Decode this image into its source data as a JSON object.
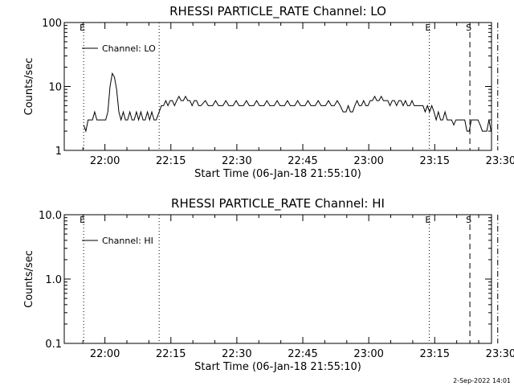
{
  "footer": {
    "stamp": "2-Sep-2022 14:01"
  },
  "chart_data": [
    {
      "type": "line",
      "title": "RHESSI  PARTICLE_RATE  Channel:  LO",
      "xlabel": "Start Time (06-Jan-18 21:55:10)",
      "ylabel": "Counts/sec",
      "xlim": [
        -265,
        5565
      ],
      "ylim": [
        1,
        100
      ],
      "log_y": true,
      "x_ticks": [
        {
          "t": 290,
          "label": "22:00"
        },
        {
          "t": 1190,
          "label": "22:15"
        },
        {
          "t": 2090,
          "label": "22:30"
        },
        {
          "t": 2990,
          "label": "22:45"
        },
        {
          "t": 3890,
          "label": "23:00"
        },
        {
          "t": 4790,
          "label": "23:15"
        },
        {
          "t": 5690,
          "label": "23:30"
        }
      ],
      "y_ticks": [
        {
          "v": 1,
          "label": "1"
        },
        {
          "v": 10,
          "label": "10"
        },
        {
          "v": 100,
          "label": "100"
        }
      ],
      "markers": [
        {
          "t": 0,
          "style": "dotted",
          "label": "E"
        },
        {
          "t": 1030,
          "style": "dotted",
          "label": ""
        },
        {
          "t": 4715,
          "style": "dotted",
          "label": "E"
        },
        {
          "t": 5270,
          "style": "dashed",
          "label": "S"
        },
        {
          "t": 5650,
          "style": "dashdot",
          "label": ""
        }
      ],
      "series": [
        {
          "name": "Channel: LO",
          "points": [
            [
              0,
              2.5
            ],
            [
              30,
              2
            ],
            [
              60,
              3
            ],
            [
              120,
              3
            ],
            [
              150,
              4
            ],
            [
              180,
              3
            ],
            [
              240,
              3
            ],
            [
              300,
              3
            ],
            [
              330,
              4
            ],
            [
              360,
              10
            ],
            [
              390,
              16
            ],
            [
              420,
              14
            ],
            [
              450,
              9
            ],
            [
              480,
              4
            ],
            [
              510,
              3
            ],
            [
              540,
              4
            ],
            [
              570,
              3
            ],
            [
              600,
              3
            ],
            [
              630,
              4
            ],
            [
              660,
              3
            ],
            [
              690,
              3
            ],
            [
              720,
              4
            ],
            [
              750,
              3
            ],
            [
              780,
              4
            ],
            [
              810,
              3
            ],
            [
              840,
              3
            ],
            [
              870,
              4
            ],
            [
              900,
              3
            ],
            [
              930,
              4
            ],
            [
              960,
              3
            ],
            [
              990,
              3
            ],
            [
              1030,
              4
            ],
            [
              1060,
              5
            ],
            [
              1090,
              5
            ],
            [
              1120,
              6
            ],
            [
              1150,
              5
            ],
            [
              1180,
              6
            ],
            [
              1210,
              6
            ],
            [
              1240,
              5
            ],
            [
              1270,
              6
            ],
            [
              1300,
              7
            ],
            [
              1330,
              6
            ],
            [
              1360,
              6
            ],
            [
              1390,
              7
            ],
            [
              1420,
              6
            ],
            [
              1450,
              6
            ],
            [
              1480,
              5
            ],
            [
              1510,
              6
            ],
            [
              1540,
              6
            ],
            [
              1570,
              5
            ],
            [
              1600,
              5
            ],
            [
              1660,
              6
            ],
            [
              1700,
              5
            ],
            [
              1760,
              5
            ],
            [
              1800,
              6
            ],
            [
              1840,
              5
            ],
            [
              1900,
              5
            ],
            [
              1940,
              6
            ],
            [
              1980,
              5
            ],
            [
              2040,
              5
            ],
            [
              2080,
              6
            ],
            [
              2120,
              5
            ],
            [
              2180,
              5
            ],
            [
              2220,
              6
            ],
            [
              2260,
              5
            ],
            [
              2320,
              5
            ],
            [
              2360,
              6
            ],
            [
              2400,
              5
            ],
            [
              2460,
              5
            ],
            [
              2500,
              6
            ],
            [
              2540,
              5
            ],
            [
              2600,
              5
            ],
            [
              2640,
              6
            ],
            [
              2680,
              5
            ],
            [
              2740,
              5
            ],
            [
              2780,
              6
            ],
            [
              2820,
              5
            ],
            [
              2880,
              5
            ],
            [
              2920,
              6
            ],
            [
              2960,
              5
            ],
            [
              3020,
              5
            ],
            [
              3060,
              6
            ],
            [
              3100,
              5
            ],
            [
              3160,
              5
            ],
            [
              3200,
              6
            ],
            [
              3240,
              5
            ],
            [
              3300,
              5
            ],
            [
              3340,
              6
            ],
            [
              3380,
              5
            ],
            [
              3420,
              5
            ],
            [
              3460,
              6
            ],
            [
              3500,
              5
            ],
            [
              3540,
              4
            ],
            [
              3580,
              4
            ],
            [
              3610,
              5
            ],
            [
              3640,
              4
            ],
            [
              3670,
              4
            ],
            [
              3700,
              5
            ],
            [
              3730,
              6
            ],
            [
              3760,
              5
            ],
            [
              3790,
              5
            ],
            [
              3820,
              6
            ],
            [
              3850,
              5
            ],
            [
              3880,
              5
            ],
            [
              3910,
              6
            ],
            [
              3940,
              6
            ],
            [
              3970,
              7
            ],
            [
              4000,
              6
            ],
            [
              4030,
              6
            ],
            [
              4060,
              7
            ],
            [
              4090,
              6
            ],
            [
              4120,
              6
            ],
            [
              4150,
              6
            ],
            [
              4180,
              5
            ],
            [
              4210,
              6
            ],
            [
              4240,
              6
            ],
            [
              4270,
              5
            ],
            [
              4300,
              6
            ],
            [
              4330,
              6
            ],
            [
              4360,
              5
            ],
            [
              4390,
              6
            ],
            [
              4420,
              5
            ],
            [
              4450,
              5
            ],
            [
              4480,
              6
            ],
            [
              4510,
              5
            ],
            [
              4540,
              5
            ],
            [
              4570,
              5
            ],
            [
              4600,
              5
            ],
            [
              4630,
              5
            ],
            [
              4660,
              4
            ],
            [
              4690,
              5
            ],
            [
              4720,
              4
            ],
            [
              4750,
              5
            ],
            [
              4780,
              4
            ],
            [
              4810,
              3
            ],
            [
              4840,
              4
            ],
            [
              4870,
              3
            ],
            [
              4900,
              3
            ],
            [
              4930,
              4
            ],
            [
              4960,
              3
            ],
            [
              4990,
              3
            ],
            [
              5020,
              3
            ],
            [
              5050,
              2.5
            ],
            [
              5080,
              3
            ],
            [
              5110,
              3
            ],
            [
              5140,
              3
            ],
            [
              5170,
              3
            ],
            [
              5200,
              3
            ],
            [
              5230,
              2
            ],
            [
              5260,
              2
            ],
            [
              5290,
              3
            ],
            [
              5320,
              3
            ],
            [
              5350,
              3
            ],
            [
              5380,
              3
            ],
            [
              5410,
              2.5
            ],
            [
              5440,
              2
            ],
            [
              5470,
              2
            ],
            [
              5500,
              2
            ],
            [
              5530,
              3
            ],
            [
              5560,
              2
            ]
          ]
        }
      ]
    },
    {
      "type": "line",
      "title": "RHESSI  PARTICLE_RATE  Channel:  HI",
      "xlabel": "Start Time (06-Jan-18 21:55:10)",
      "ylabel": "Counts/sec",
      "xlim": [
        -265,
        5565
      ],
      "ylim": [
        0.1,
        10
      ],
      "log_y": true,
      "x_ticks": [
        {
          "t": 290,
          "label": "22:00"
        },
        {
          "t": 1190,
          "label": "22:15"
        },
        {
          "t": 2090,
          "label": "22:30"
        },
        {
          "t": 2990,
          "label": "22:45"
        },
        {
          "t": 3890,
          "label": "23:00"
        },
        {
          "t": 4790,
          "label": "23:15"
        },
        {
          "t": 5690,
          "label": "23:30"
        }
      ],
      "y_ticks": [
        {
          "v": 0.1,
          "label": "0.1"
        },
        {
          "v": 1,
          "label": "1.0"
        },
        {
          "v": 10,
          "label": "10.0"
        }
      ],
      "markers": [
        {
          "t": 0,
          "style": "dotted",
          "label": "E"
        },
        {
          "t": 1030,
          "style": "dotted",
          "label": ""
        },
        {
          "t": 4715,
          "style": "dotted",
          "label": "E"
        },
        {
          "t": 5270,
          "style": "dashed",
          "label": "S"
        },
        {
          "t": 5650,
          "style": "dashdot",
          "label": ""
        }
      ],
      "series": [
        {
          "name": "Channel: HI",
          "points": []
        }
      ]
    }
  ]
}
